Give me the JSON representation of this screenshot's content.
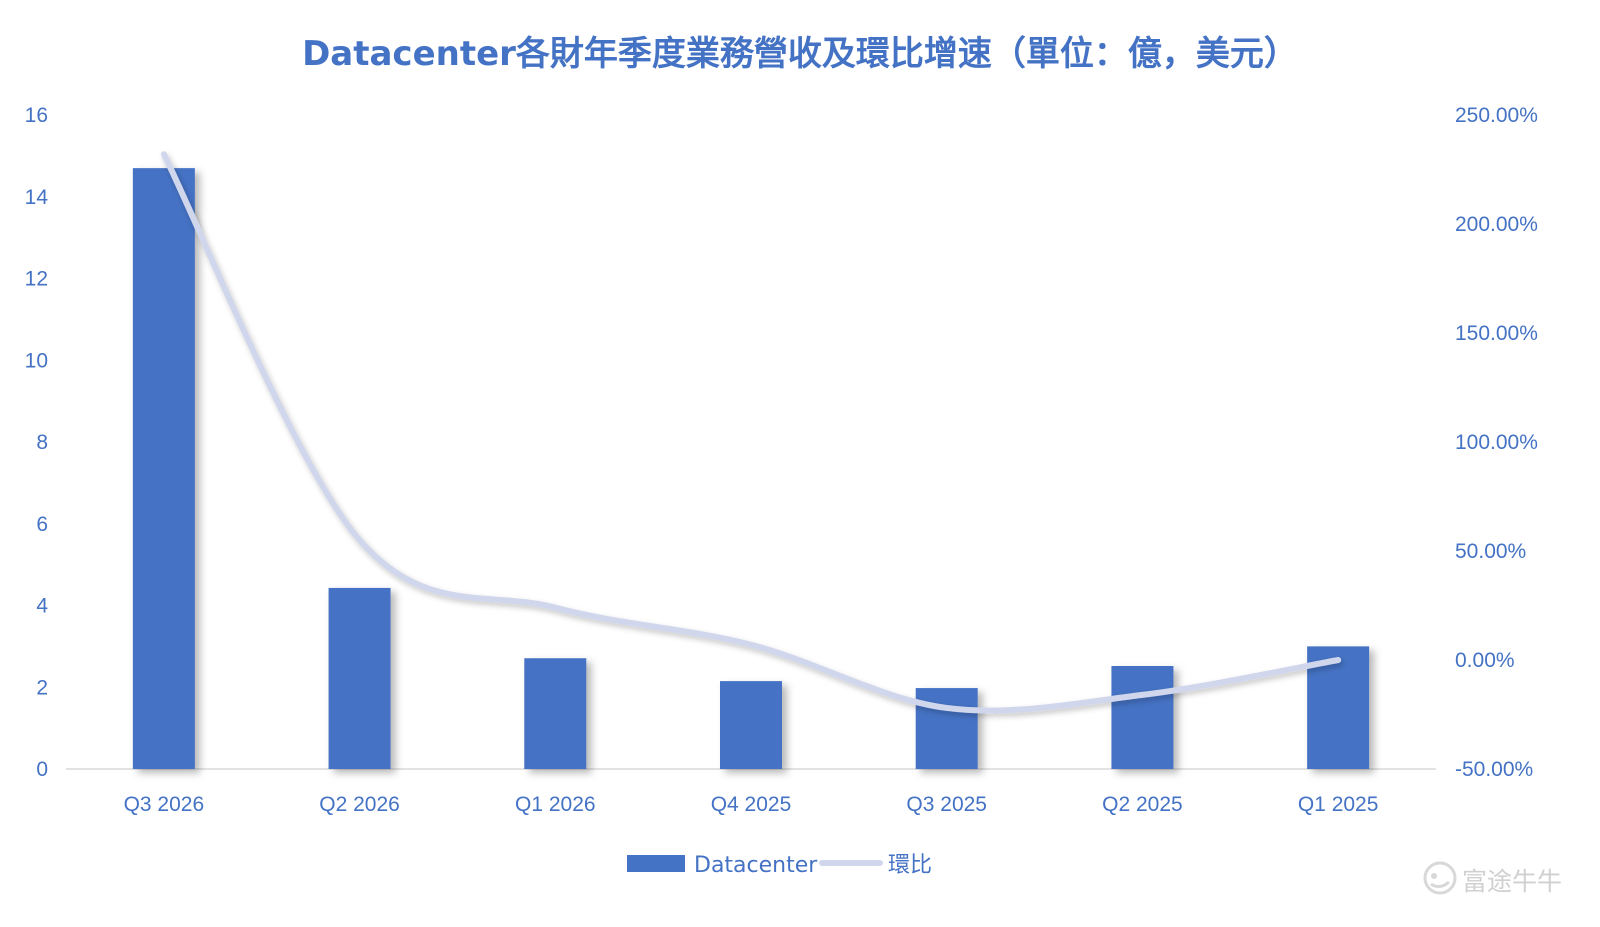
{
  "chart_data": {
    "type": "bar",
    "title": "Datacenter各財年季度業務營收及環比增速（單位：億，美元）",
    "categories": [
      "Q3 2026",
      "Q2 2026",
      "Q1 2026",
      "Q4 2025",
      "Q3 2025",
      "Q2 2025",
      "Q1 2025"
    ],
    "series": [
      {
        "name": "Datacenter",
        "type": "bar",
        "axis": "left",
        "color": "#4472c4",
        "values": [
          14.7,
          4.43,
          2.71,
          2.15,
          1.98,
          2.52,
          3.0
        ]
      },
      {
        "name": "環比",
        "type": "line",
        "axis": "right",
        "color": "#d0d7ec",
        "values": [
          232.0,
          55.0,
          24.0,
          7.0,
          -22.0,
          -16.0,
          0.0
        ]
      }
    ],
    "y_left": {
      "min": 0,
      "max": 16,
      "step": 2,
      "ticks": [
        "0",
        "2",
        "4",
        "6",
        "8",
        "10",
        "12",
        "14",
        "16"
      ]
    },
    "y_right": {
      "min": -50,
      "max": 250,
      "step": 50,
      "ticks": [
        "-50.00%",
        "0.00%",
        "50.00%",
        "100.00%",
        "150.00%",
        "200.00%",
        "250.00%"
      ]
    },
    "legend_position": "bottom",
    "grid": false
  },
  "watermark": {
    "text": "富途牛牛",
    "icon": "futu-bull-icon"
  }
}
